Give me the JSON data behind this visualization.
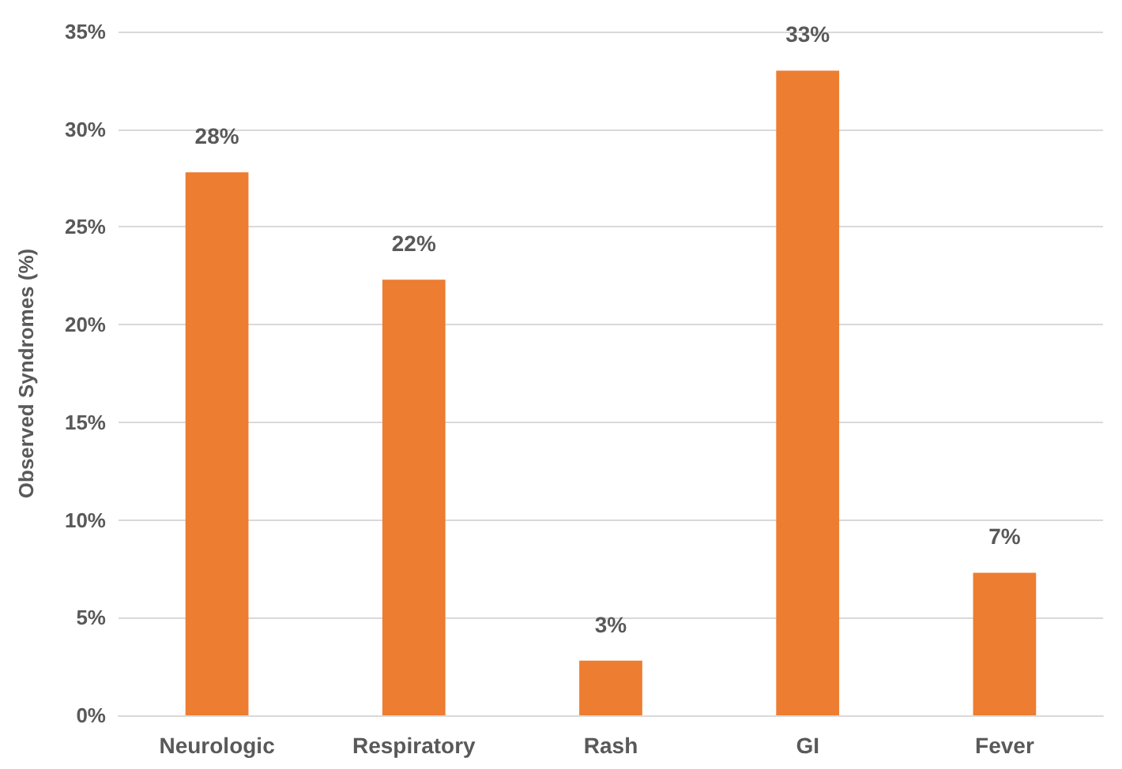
{
  "chart_data": {
    "type": "bar",
    "ylabel": "Observed Syndromes (%)",
    "categories": [
      "Neurologic",
      "Respiratory",
      "Rash",
      "GI",
      "Fever"
    ],
    "values": [
      27.8,
      22.3,
      2.8,
      33,
      7.3
    ],
    "value_labels": [
      "28%",
      "22%",
      "3%",
      "33%",
      "7%"
    ],
    "color": "#ed7d31",
    "ylim": [
      0,
      35
    ],
    "yticks": [
      {
        "value": 0,
        "label": "0%"
      },
      {
        "value": 5,
        "label": "5%"
      },
      {
        "value": 10,
        "label": "10%"
      },
      {
        "value": 15,
        "label": "15%"
      },
      {
        "value": 20,
        "label": "20%"
      },
      {
        "value": 25,
        "label": "25%"
      },
      {
        "value": 30,
        "label": "30%"
      },
      {
        "value": 35,
        "label": "35%"
      }
    ],
    "grid": "y"
  }
}
